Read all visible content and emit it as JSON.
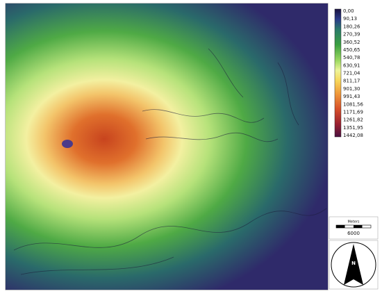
{
  "legend": {
    "labels": [
      "0,00",
      "90,13",
      "180,26",
      "270,39",
      "360,52",
      "450,65",
      "540,78",
      "630,91",
      "721,04",
      "811,17",
      "901,30",
      "991,43",
      "1081,56",
      "1171,69",
      "1261,82",
      "1351,95",
      "1442,08"
    ]
  },
  "scale_bar": {
    "unit": "Meters",
    "length": "6000"
  },
  "north_arrow": {
    "label": "N"
  }
}
